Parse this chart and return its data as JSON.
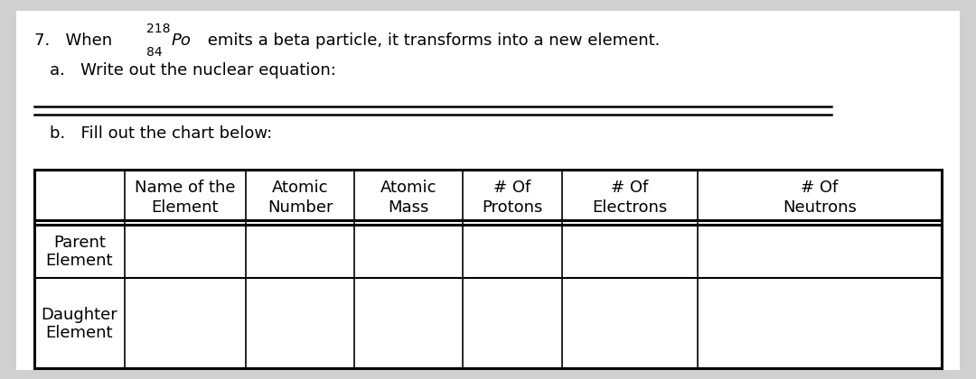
{
  "bg_color": "#d0d0d0",
  "panel_color": "#ffffff",
  "isotope_mass": "218",
  "isotope_number": "84",
  "isotope_symbol": "Po",
  "col_headers": [
    [
      "Name of the",
      "Element"
    ],
    [
      "Atomic",
      "Number"
    ],
    [
      "Atomic",
      "Mass"
    ],
    [
      "# Of",
      "Protons"
    ],
    [
      "# Of",
      "Electrons"
    ],
    [
      "# Of",
      "Neutrons"
    ]
  ],
  "row_labels": [
    [
      "Parent",
      "Element"
    ],
    [
      "Daughter",
      "Element"
    ]
  ],
  "font_size": 13,
  "header_font_size": 13,
  "row_label_font_size": 13
}
